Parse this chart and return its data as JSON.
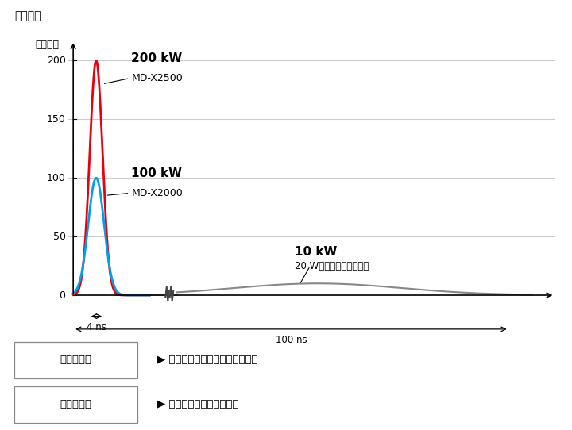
{
  "title": "参考数据",
  "ylabel": "峰值功率",
  "bg_color": "#ffffff",
  "plot_bg": "#ffffff",
  "grid_color": "#cccccc",
  "yticks": [
    0,
    50,
    100,
    150,
    200
  ],
  "peak_200_label": "200 kW",
  "peak_200_model": "MD-X2500",
  "peak_100_label": "100 kW",
  "peak_100_model": "MD-X2000",
  "peak_10_label": "10 kW",
  "fiber_label": "20 W光纤激光（代表值）",
  "color_red": "#e8000d",
  "color_blue": "#00a0e9",
  "color_gray": "#888888",
  "color_dark": "#222222",
  "span_label1": "4 ns",
  "span_label2": "100 ns",
  "table_row1_left": "峰值功率大",
  "table_row1_right": "▶ 非常适合铭刻金属或给树脂着色",
  "table_row2_left": "脉冲宽度小",
  "table_row2_right": "▶ 在目标物体上的热应力小"
}
